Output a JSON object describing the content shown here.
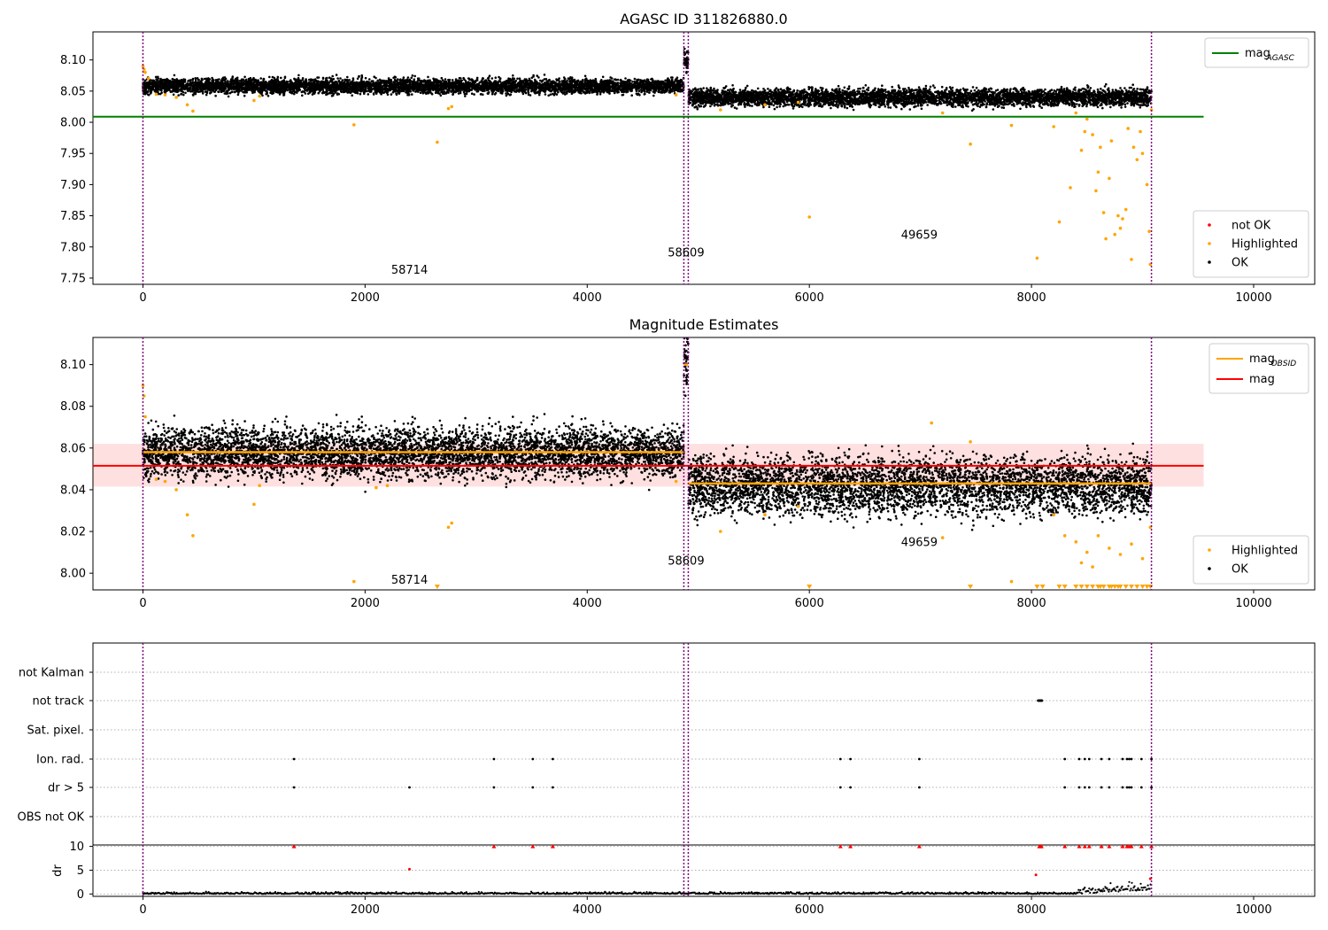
{
  "chart_data": [
    {
      "type": "scatter",
      "title": "AGASC ID 311826880.0",
      "xlim": [
        -450,
        10550
      ],
      "ylim": [
        7.74,
        8.145
      ],
      "x_ticks": [
        0,
        2000,
        4000,
        6000,
        8000,
        10000
      ],
      "y_ticks": [
        7.75,
        7.8,
        7.85,
        7.9,
        7.95,
        8.0,
        8.05,
        8.1
      ],
      "y_tick_labels": [
        "7.75",
        "7.80",
        "7.85",
        "7.90",
        "7.95",
        "8.00",
        "8.05",
        "8.10"
      ],
      "vertical_lines": [
        0,
        4870,
        4910,
        9080
      ],
      "agasc_mag": 8.009,
      "segments": [
        {
          "start": 0,
          "end": 4870,
          "ok_level": 8.058,
          "spread": 0.006
        },
        {
          "start": 4870,
          "end": 4910,
          "ok_level": 8.1,
          "spread": 0.008
        },
        {
          "start": 4910,
          "end": 9080,
          "ok_level": 8.04,
          "spread": 0.007
        }
      ],
      "highlighted_points": [
        [
          0,
          8.09
        ],
        [
          10,
          8.085
        ],
        [
          20,
          8.08
        ],
        [
          50,
          8.07
        ],
        [
          120,
          8.045
        ],
        [
          200,
          8.044
        ],
        [
          300,
          8.04
        ],
        [
          400,
          8.028
        ],
        [
          450,
          8.018
        ],
        [
          1000,
          8.035
        ],
        [
          1050,
          8.042
        ],
        [
          1900,
          7.996
        ],
        [
          2650,
          7.968
        ],
        [
          2750,
          8.022
        ],
        [
          2780,
          8.025
        ],
        [
          4800,
          8.044
        ],
        [
          5200,
          8.02
        ],
        [
          5600,
          8.028
        ],
        [
          5900,
          8.032
        ],
        [
          6000,
          7.848
        ],
        [
          7200,
          8.015
        ],
        [
          7450,
          7.965
        ],
        [
          7820,
          7.995
        ],
        [
          8050,
          7.782
        ],
        [
          8200,
          7.993
        ],
        [
          8250,
          7.84
        ],
        [
          8350,
          7.895
        ],
        [
          8400,
          8.015
        ],
        [
          8450,
          7.955
        ],
        [
          8480,
          7.985
        ],
        [
          8500,
          8.005
        ],
        [
          8550,
          7.98
        ],
        [
          8580,
          7.89
        ],
        [
          8600,
          7.92
        ],
        [
          8620,
          7.96
        ],
        [
          8650,
          7.855
        ],
        [
          8670,
          7.813
        ],
        [
          8700,
          7.91
        ],
        [
          8720,
          7.97
        ],
        [
          8750,
          7.82
        ],
        [
          8780,
          7.85
        ],
        [
          8800,
          7.83
        ],
        [
          8820,
          7.845
        ],
        [
          8850,
          7.86
        ],
        [
          8870,
          7.99
        ],
        [
          8900,
          7.78
        ],
        [
          8920,
          7.96
        ],
        [
          8950,
          7.94
        ],
        [
          8980,
          7.985
        ],
        [
          9000,
          7.95
        ],
        [
          9040,
          7.9
        ],
        [
          9060,
          7.825
        ],
        [
          9070,
          7.772
        ],
        [
          9080,
          8.02
        ]
      ],
      "not_ok_points": [],
      "obsid_labels": [
        {
          "x": 2400,
          "y": 7.757,
          "text": "58714"
        },
        {
          "x": 4890,
          "y": 7.785,
          "text": "58609"
        },
        {
          "x": 6990,
          "y": 7.813,
          "text": "49659"
        }
      ],
      "legend_lines": [
        {
          "name": "mag",
          "sub": "AGASC",
          "color": "#008000"
        }
      ],
      "legend_markers": [
        {
          "name": "not OK",
          "color": "#ff0000"
        },
        {
          "name": "Highlighted",
          "color": "#ffa500"
        },
        {
          "name": "OK",
          "color": "#000000"
        }
      ]
    },
    {
      "type": "scatter",
      "title": "Magnitude Estimates",
      "xlim": [
        -450,
        10550
      ],
      "ylim": [
        7.992,
        8.113
      ],
      "x_ticks": [
        0,
        2000,
        4000,
        6000,
        8000,
        10000
      ],
      "y_ticks": [
        8.0,
        8.02,
        8.04,
        8.06,
        8.08,
        8.1
      ],
      "y_tick_labels": [
        "8.00",
        "8.02",
        "8.04",
        "8.06",
        "8.08",
        "8.10"
      ],
      "vertical_lines": [
        0,
        4870,
        4910,
        9080
      ],
      "mag": 8.0515,
      "mag_band": [
        8.0415,
        8.062
      ],
      "obsid_mag": [
        {
          "start": 0,
          "end": 4870,
          "value": 8.058
        },
        {
          "start": 4870,
          "end": 4910,
          "value": 8.1
        },
        {
          "start": 4910,
          "end": 9080,
          "value": 8.043
        }
      ],
      "segments": [
        {
          "start": 0,
          "end": 4870,
          "ok_level": 8.058,
          "spread": 0.006
        },
        {
          "start": 4870,
          "end": 4910,
          "ok_level": 8.1,
          "spread": 0.008
        },
        {
          "start": 4910,
          "end": 9080,
          "ok_level": 8.042,
          "spread": 0.007
        }
      ],
      "highlighted_points": [
        [
          0,
          8.09
        ],
        [
          10,
          8.085
        ],
        [
          20,
          8.075
        ],
        [
          120,
          8.045
        ],
        [
          200,
          8.044
        ],
        [
          300,
          8.04
        ],
        [
          400,
          8.028
        ],
        [
          450,
          8.018
        ],
        [
          1000,
          8.033
        ],
        [
          1050,
          8.042
        ],
        [
          1900,
          7.996
        ],
        [
          2100,
          8.041
        ],
        [
          2200,
          8.042
        ],
        [
          2750,
          8.022
        ],
        [
          2780,
          8.024
        ],
        [
          4800,
          8.044
        ],
        [
          5200,
          8.02
        ],
        [
          5600,
          8.028
        ],
        [
          5900,
          8.032
        ],
        [
          7100,
          8.072
        ],
        [
          7200,
          8.017
        ],
        [
          7450,
          8.063
        ],
        [
          7820,
          7.996
        ],
        [
          8200,
          8.028
        ],
        [
          8300,
          8.018
        ],
        [
          8400,
          8.015
        ],
        [
          8450,
          8.005
        ],
        [
          8500,
          8.01
        ],
        [
          8550,
          8.003
        ],
        [
          8600,
          8.018
        ],
        [
          8700,
          8.012
        ],
        [
          8800,
          8.009
        ],
        [
          8900,
          8.014
        ],
        [
          9000,
          8.007
        ],
        [
          9070,
          8.022
        ]
      ],
      "clipped_points": [
        2650,
        6000,
        7450,
        8050,
        8100,
        8250,
        8300,
        8400,
        8450,
        8500,
        8550,
        8600,
        8620,
        8650,
        8700,
        8720,
        8750,
        8780,
        8800,
        8850,
        8900,
        8950,
        9000,
        9040,
        9070
      ],
      "obsid_labels": [
        {
          "x": 2400,
          "y": 7.995,
          "text": "58714"
        },
        {
          "x": 4890,
          "y": 8.004,
          "text": "58609"
        },
        {
          "x": 6990,
          "y": 8.013,
          "text": "49659"
        }
      ],
      "legend_lines": [
        {
          "name": "mag",
          "sub": "OBSID",
          "color": "#ffa500"
        },
        {
          "name": "mag",
          "sub": "",
          "color": "#ff0000"
        }
      ],
      "legend_markers": [
        {
          "name": "Highlighted",
          "color": "#ffa500"
        },
        {
          "name": "OK",
          "color": "#000000"
        }
      ]
    },
    {
      "type": "scatter",
      "xlim": [
        -450,
        10550
      ],
      "x_ticks": [
        0,
        2000,
        4000,
        6000,
        8000,
        10000
      ],
      "vertical_lines": [
        0,
        4870,
        4910,
        9080
      ],
      "flag_categories": [
        "not Kalman",
        "not track",
        "Sat. pixel.",
        "Ion. rad.",
        "dr > 5",
        "OBS not OK"
      ],
      "flag_points": {
        "not track": [
          8060,
          8065,
          8070,
          8075,
          8080,
          8085,
          8090,
          8095
        ],
        "Ion. rad.": [
          1360,
          3160,
          3510,
          3690,
          6280,
          6370,
          6990,
          8300,
          8430,
          8480,
          8520,
          8630,
          8700,
          8820,
          8860,
          8880,
          8900,
          8990,
          9080
        ],
        "dr > 5": [
          1360,
          2400,
          3160,
          3510,
          3690,
          6280,
          6370,
          6990,
          8300,
          8430,
          8480,
          8520,
          8630,
          8700,
          8820,
          8860,
          8880,
          8900,
          8990,
          9080
        ]
      },
      "dr_ylabel": "dr",
      "dr_ylim": [
        -0.5,
        10.3
      ],
      "dr_ticks": [
        0,
        5,
        10
      ],
      "dr_clipped": [
        1360,
        3160,
        3510,
        3690,
        6280,
        6370,
        6990,
        8070,
        8080,
        8090,
        8300,
        8430,
        8480,
        8520,
        8630,
        8700,
        8820,
        8860,
        8880,
        8900,
        8990,
        9080
      ],
      "dr_red_points": [
        [
          2400,
          5.2
        ],
        [
          8040,
          4.0
        ],
        [
          9070,
          3.2
        ]
      ]
    }
  ]
}
